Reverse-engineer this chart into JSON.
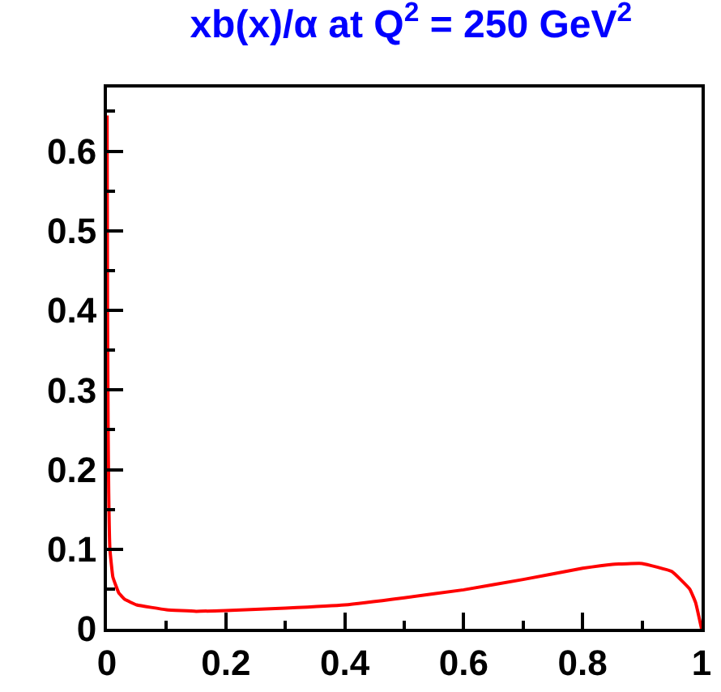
{
  "chart_data": {
    "type": "line",
    "title": "xb(x)/α at Q$^{2}$ = 250 GeV$^{2}$",
    "series": [
      {
        "color": "#ff0000",
        "x": [
          0.0003,
          0.001,
          0.002,
          0.003,
          0.005,
          0.01,
          0.02,
          0.03,
          0.05,
          0.1,
          0.15,
          0.2,
          0.3,
          0.4,
          0.5,
          0.6,
          0.7,
          0.8,
          0.85,
          0.9,
          0.95,
          0.98,
          0.99,
          1.0
        ],
        "values": [
          0.645,
          0.4,
          0.25,
          0.17,
          0.1,
          0.065,
          0.045,
          0.037,
          0.03,
          0.024,
          0.022,
          0.023,
          0.026,
          0.03,
          0.039,
          0.049,
          0.062,
          0.076,
          0.081,
          0.082,
          0.072,
          0.05,
          0.033,
          0
        ]
      }
    ],
    "xlim": [
      0,
      1
    ],
    "ylim": [
      0,
      0.68
    ],
    "xticks": [
      0,
      {
        "value": 0.1,
        "label": null
      },
      0.2,
      {
        "value": 0.3,
        "label": null
      },
      0.4,
      {
        "value": 0.5,
        "label": null
      },
      0.6,
      {
        "value": 0.7,
        "label": null
      },
      0.8,
      {
        "value": 0.9,
        "label": null
      },
      1
    ],
    "yticks": [
      0,
      {
        "value": 0.05,
        "label": null
      },
      0.1,
      {
        "value": 0.15,
        "label": null
      },
      0.2,
      {
        "value": 0.25,
        "label": null
      },
      0.3,
      {
        "value": 0.35,
        "label": null
      },
      0.4,
      {
        "value": 0.45,
        "label": null
      },
      0.5,
      {
        "value": 0.55,
        "label": null
      },
      0.6,
      {
        "value": 0.65,
        "label": null
      }
    ],
    "line_style": "solid",
    "marker": "none"
  }
}
